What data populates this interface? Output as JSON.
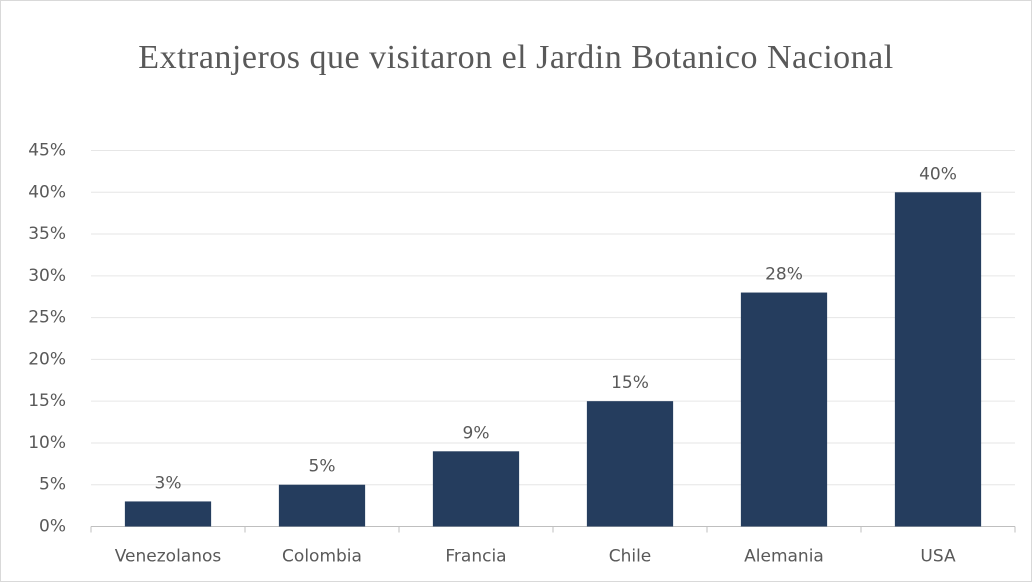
{
  "chart_data": {
    "type": "bar",
    "title": "Extranjeros que visitaron el Jardin Botanico Nacional",
    "categories": [
      "Venezolanos",
      "Colombia",
      "Francia",
      "Chile",
      "Alemania",
      "USA"
    ],
    "values": [
      3,
      5,
      9,
      15,
      28,
      40
    ],
    "value_labels": [
      "3%",
      "5%",
      "9%",
      "15%",
      "28%",
      "40%"
    ],
    "color": "#253d5e",
    "ylim": [
      0,
      45
    ],
    "yticks": [
      {
        "value": 0,
        "label": "0%"
      },
      {
        "value": 5,
        "label": "5%"
      },
      {
        "value": 10,
        "label": "10%"
      },
      {
        "value": 15,
        "label": "15%"
      },
      {
        "value": 20,
        "label": "20%"
      },
      {
        "value": 25,
        "label": "25%"
      },
      {
        "value": 30,
        "label": "30%"
      },
      {
        "value": 35,
        "label": "35%"
      },
      {
        "value": 40,
        "label": "40%"
      },
      {
        "value": 45,
        "label": "45%"
      }
    ],
    "grid": true
  }
}
